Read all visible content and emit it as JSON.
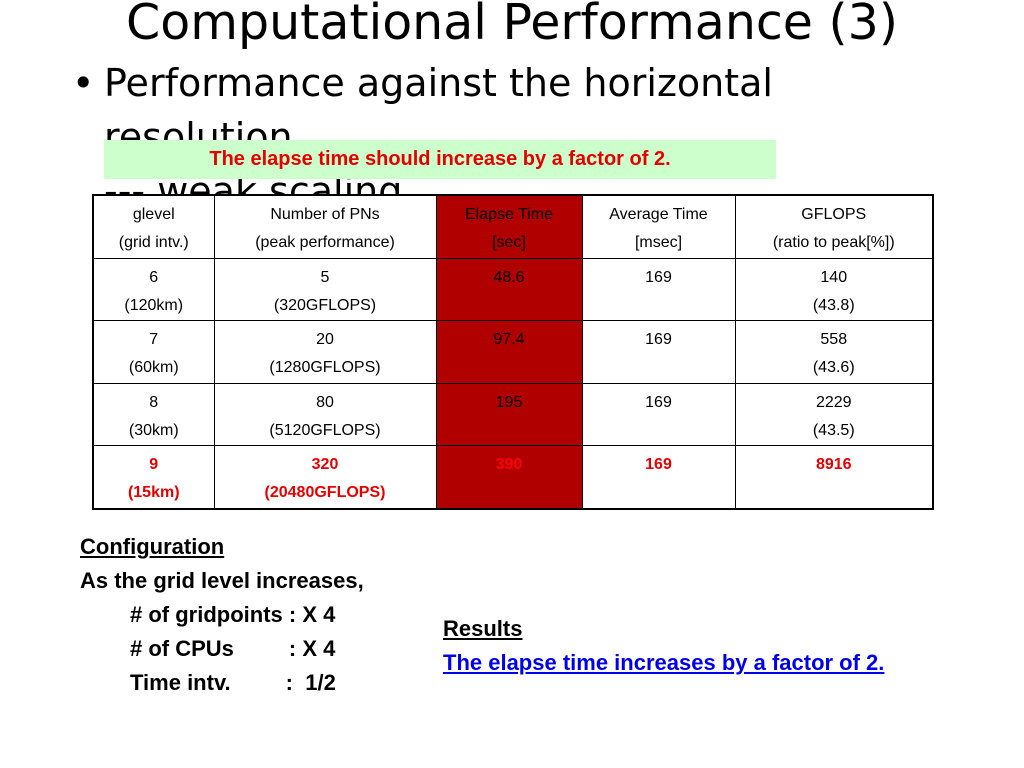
{
  "title": "Computational Performance (3)",
  "bullet": {
    "line1": "Performance against the horizontal",
    "line2": "resolution",
    "line3": "--- weak scaling"
  },
  "note": "The elapse time should increase by a factor of 2.",
  "table": {
    "headers": [
      [
        "glevel",
        "(grid intv.)"
      ],
      [
        "Number of PNs",
        "(peak performance)"
      ],
      [
        "Elapse Time",
        "[sec]"
      ],
      [
        "Average Time",
        "[msec]"
      ],
      [
        "GFLOPS",
        "(ratio to peak[%])"
      ]
    ],
    "rows": [
      [
        [
          "6",
          "(120km)"
        ],
        [
          "5",
          "(320GFLOPS)"
        ],
        [
          "48.6",
          ""
        ],
        [
          "169",
          ""
        ],
        [
          "140",
          "(43.8)"
        ]
      ],
      [
        [
          "7",
          "(60km)"
        ],
        [
          "20",
          "(1280GFLOPS)"
        ],
        [
          "97.4",
          ""
        ],
        [
          "169",
          ""
        ],
        [
          "558",
          "(43.6)"
        ]
      ],
      [
        [
          "8",
          "(30km)"
        ],
        [
          "80",
          "(5120GFLOPS)"
        ],
        [
          "195",
          ""
        ],
        [
          "169",
          ""
        ],
        [
          "2229",
          "(43.5)"
        ]
      ],
      [
        [
          "9",
          "(15km)"
        ],
        [
          "320",
          "(20480GFLOPS)"
        ],
        [
          "390",
          ""
        ],
        [
          "169",
          ""
        ],
        [
          "8916",
          ""
        ]
      ]
    ],
    "highlight_color": "#b00000"
  },
  "config": {
    "heading": "Configuration",
    "intro": "As the grid level increases,",
    "items": [
      "# of gridpoints : X 4",
      "# of CPUs         : X 4",
      "Time intv.         :  1/2"
    ]
  },
  "results": {
    "heading": "Results",
    "text": "The elapse time increases by a factor of 2."
  }
}
